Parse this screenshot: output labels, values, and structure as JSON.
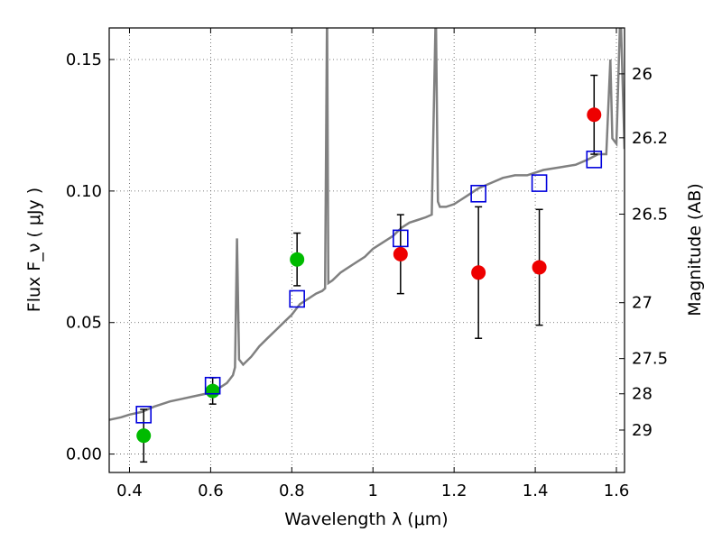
{
  "chart_data": {
    "type": "scatter",
    "title": "",
    "xlabel": "Wavelength  λ (μm)",
    "ylabel": "Flux  F_ν  ( μJy )",
    "y2label": "Magnitude (AB)",
    "xlim": [
      0.35,
      1.62
    ],
    "ylim": [
      -0.007,
      0.162
    ],
    "grid": true,
    "x_ticks": [
      {
        "value": 0.4,
        "label": "0.4"
      },
      {
        "value": 0.6,
        "label": "0.6"
      },
      {
        "value": 0.8,
        "label": "0.8"
      },
      {
        "value": 1.0,
        "label": "1"
      },
      {
        "value": 1.2,
        "label": "1.2"
      },
      {
        "value": 1.4,
        "label": "1.4"
      },
      {
        "value": 1.6,
        "label": "1.6"
      }
    ],
    "y_ticks": [
      {
        "value": 0.0,
        "label": "0.00"
      },
      {
        "value": 0.05,
        "label": "0.05"
      },
      {
        "value": 0.1,
        "label": "0.10"
      },
      {
        "value": 0.15,
        "label": "0.15"
      }
    ],
    "y2_ticks": [
      {
        "value": 26.0,
        "label": "26"
      },
      {
        "value": 26.2,
        "label": "26.2"
      },
      {
        "value": 26.5,
        "label": "26.5"
      },
      {
        "value": 27.0,
        "label": "27"
      },
      {
        "value": 27.5,
        "label": "27.5"
      },
      {
        "value": 28.0,
        "label": "28"
      },
      {
        "value": 29.0,
        "label": "29"
      }
    ],
    "model_spectrum": {
      "color": "#808080",
      "x": [
        0.35,
        0.38,
        0.4,
        0.43,
        0.46,
        0.5,
        0.53,
        0.56,
        0.59,
        0.62,
        0.64,
        0.655,
        0.66,
        0.665,
        0.67,
        0.68,
        0.7,
        0.72,
        0.74,
        0.76,
        0.78,
        0.8,
        0.82,
        0.84,
        0.86,
        0.875,
        0.882,
        0.887,
        0.89,
        0.9,
        0.92,
        0.95,
        0.98,
        1.0,
        1.02,
        1.05,
        1.07,
        1.09,
        1.11,
        1.13,
        1.145,
        1.155,
        1.16,
        1.165,
        1.18,
        1.2,
        1.23,
        1.26,
        1.29,
        1.32,
        1.35,
        1.38,
        1.42,
        1.46,
        1.5,
        1.53,
        1.555,
        1.565,
        1.575,
        1.585,
        1.59,
        1.6,
        1.61,
        1.62
      ],
      "y": [
        0.013,
        0.014,
        0.015,
        0.016,
        0.018,
        0.02,
        0.021,
        0.022,
        0.023,
        0.025,
        0.027,
        0.03,
        0.033,
        0.082,
        0.036,
        0.034,
        0.037,
        0.041,
        0.044,
        0.047,
        0.05,
        0.053,
        0.057,
        0.059,
        0.061,
        0.062,
        0.063,
        0.17,
        0.065,
        0.066,
        0.069,
        0.072,
        0.075,
        0.078,
        0.08,
        0.083,
        0.086,
        0.088,
        0.089,
        0.09,
        0.091,
        0.17,
        0.096,
        0.094,
        0.094,
        0.095,
        0.098,
        0.101,
        0.103,
        0.105,
        0.106,
        0.106,
        0.108,
        0.109,
        0.11,
        0.112,
        0.114,
        0.114,
        0.114,
        0.15,
        0.12,
        0.118,
        0.17,
        0.116
      ]
    },
    "series": [
      {
        "marker": "circle",
        "color": "#00bb00",
        "points": [
          {
            "x": 0.435,
            "y": 0.007,
            "err": 0.01
          },
          {
            "x": 0.605,
            "y": 0.024,
            "err": 0.005
          },
          {
            "x": 0.813,
            "y": 0.074,
            "err": 0.01
          }
        ]
      },
      {
        "marker": "circle",
        "color": "#ee0000",
        "points": [
          {
            "x": 1.068,
            "y": 0.076,
            "err": 0.015
          },
          {
            "x": 1.26,
            "y": 0.069,
            "err": 0.025
          },
          {
            "x": 1.41,
            "y": 0.071,
            "err": 0.022
          },
          {
            "x": 1.545,
            "y": 0.129,
            "err": 0.015
          }
        ]
      },
      {
        "marker": "open-square",
        "color": "#0000dd",
        "points": [
          {
            "x": 0.435,
            "y": 0.015
          },
          {
            "x": 0.605,
            "y": 0.026
          },
          {
            "x": 0.813,
            "y": 0.059
          },
          {
            "x": 1.068,
            "y": 0.082
          },
          {
            "x": 1.26,
            "y": 0.099
          },
          {
            "x": 1.41,
            "y": 0.103
          },
          {
            "x": 1.545,
            "y": 0.112
          }
        ]
      }
    ]
  }
}
